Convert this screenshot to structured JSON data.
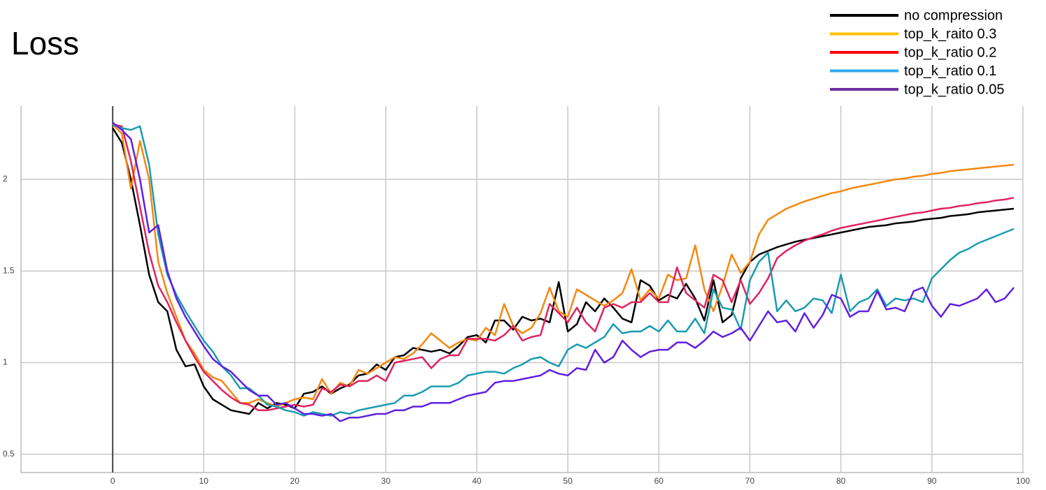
{
  "chart_data": {
    "type": "line",
    "title": "Loss",
    "x": [
      0,
      1,
      2,
      3,
      4,
      5,
      6,
      7,
      8,
      9,
      10,
      11,
      12,
      13,
      14,
      15,
      16,
      17,
      18,
      19,
      20,
      21,
      22,
      23,
      24,
      25,
      26,
      27,
      28,
      29,
      30,
      31,
      32,
      33,
      34,
      35,
      36,
      37,
      38,
      39,
      40,
      41,
      42,
      43,
      44,
      45,
      46,
      47,
      48,
      49,
      50,
      51,
      52,
      53,
      54,
      55,
      56,
      57,
      58,
      59,
      60,
      61,
      62,
      63,
      64,
      65,
      66,
      67,
      68,
      69,
      70,
      71,
      72,
      73,
      74,
      75,
      76,
      77,
      78,
      79,
      80,
      81,
      82,
      83,
      84,
      85,
      86,
      87,
      88,
      89,
      90,
      91,
      92,
      93,
      94,
      95,
      96,
      97,
      98,
      99
    ],
    "xlim": [
      -10,
      100
    ],
    "xticks": [
      0,
      10,
      20,
      30,
      40,
      50,
      60,
      70,
      80,
      90,
      100
    ],
    "ylim": [
      0.4,
      2.4
    ],
    "yticks": [
      0.5,
      1,
      1.5,
      2
    ],
    "grid": true,
    "series": [
      {
        "name": "no compression",
        "color": "#000000",
        "legend_color": "#000000",
        "values": [
          2.28,
          2.2,
          2.0,
          1.75,
          1.48,
          1.33,
          1.28,
          1.07,
          0.98,
          0.99,
          0.87,
          0.8,
          0.77,
          0.74,
          0.73,
          0.72,
          0.78,
          0.75,
          0.78,
          0.77,
          0.75,
          0.83,
          0.84,
          0.87,
          0.83,
          0.86,
          0.88,
          0.93,
          0.94,
          0.99,
          0.96,
          1.03,
          1.04,
          1.08,
          1.07,
          1.06,
          1.07,
          1.05,
          1.09,
          1.14,
          1.15,
          1.11,
          1.23,
          1.23,
          1.18,
          1.25,
          1.23,
          1.24,
          1.22,
          1.44,
          1.17,
          1.21,
          1.33,
          1.28,
          1.35,
          1.3,
          1.24,
          1.22,
          1.45,
          1.42,
          1.34,
          1.37,
          1.35,
          1.43,
          1.35,
          1.23,
          1.45,
          1.22,
          1.26,
          1.46,
          1.55,
          1.59,
          1.61,
          1.63,
          1.645,
          1.66,
          1.67,
          1.68,
          1.69,
          1.7,
          1.71,
          1.72,
          1.73,
          1.74,
          1.745,
          1.75,
          1.76,
          1.765,
          1.77,
          1.78,
          1.785,
          1.79,
          1.8,
          1.805,
          1.81,
          1.82,
          1.825,
          1.83,
          1.835,
          1.84
        ]
      },
      {
        "name": "top_k_raito 0.3",
        "color": "#f5880f",
        "legend_color": "#ffc000",
        "values": [
          2.3,
          2.25,
          1.95,
          2.21,
          2.0,
          1.55,
          1.38,
          1.25,
          1.12,
          1.05,
          0.96,
          0.92,
          0.9,
          0.84,
          0.78,
          0.78,
          0.8,
          0.78,
          0.76,
          0.78,
          0.8,
          0.81,
          0.8,
          0.91,
          0.83,
          0.89,
          0.87,
          0.96,
          0.94,
          0.97,
          1.0,
          1.03,
          1.02,
          1.05,
          1.1,
          1.16,
          1.12,
          1.08,
          1.11,
          1.13,
          1.12,
          1.19,
          1.15,
          1.32,
          1.2,
          1.16,
          1.19,
          1.27,
          1.41,
          1.28,
          1.25,
          1.4,
          1.37,
          1.34,
          1.31,
          1.34,
          1.38,
          1.51,
          1.34,
          1.4,
          1.35,
          1.48,
          1.45,
          1.46,
          1.64,
          1.4,
          1.28,
          1.42,
          1.59,
          1.49,
          1.55,
          1.7,
          1.78,
          1.81,
          1.84,
          1.86,
          1.88,
          1.895,
          1.91,
          1.925,
          1.935,
          1.95,
          1.96,
          1.97,
          1.98,
          1.99,
          2.0,
          2.005,
          2.015,
          2.02,
          2.03,
          2.035,
          2.045,
          2.05,
          2.055,
          2.06,
          2.065,
          2.07,
          2.075,
          2.08
        ]
      },
      {
        "name": "top_k_ratio 0.2",
        "color": "#e0245e",
        "legend_color": "#ff0000",
        "values": [
          2.3,
          2.29,
          2.1,
          1.85,
          1.6,
          1.42,
          1.33,
          1.22,
          1.12,
          1.03,
          0.95,
          0.9,
          0.85,
          0.81,
          0.78,
          0.77,
          0.74,
          0.74,
          0.75,
          0.76,
          0.77,
          0.76,
          0.77,
          0.86,
          0.84,
          0.88,
          0.87,
          0.9,
          0.9,
          0.93,
          0.9,
          1.0,
          1.01,
          1.02,
          1.03,
          0.97,
          1.02,
          1.04,
          1.04,
          1.13,
          1.13,
          1.13,
          1.12,
          1.15,
          1.2,
          1.12,
          1.14,
          1.15,
          1.32,
          1.27,
          1.22,
          1.3,
          1.22,
          1.17,
          1.3,
          1.32,
          1.3,
          1.33,
          1.33,
          1.38,
          1.33,
          1.33,
          1.52,
          1.38,
          1.34,
          1.3,
          1.48,
          1.45,
          1.33,
          1.45,
          1.32,
          1.38,
          1.46,
          1.57,
          1.61,
          1.64,
          1.665,
          1.685,
          1.7,
          1.72,
          1.735,
          1.745,
          1.755,
          1.765,
          1.775,
          1.785,
          1.795,
          1.805,
          1.815,
          1.82,
          1.83,
          1.84,
          1.845,
          1.855,
          1.86,
          1.87,
          1.875,
          1.885,
          1.89,
          1.9
        ]
      },
      {
        "name": "top_k_ratio 0.1",
        "color": "#1a9bb0",
        "legend_color": "#33aaee",
        "values": [
          2.3,
          2.28,
          2.27,
          2.29,
          2.08,
          1.7,
          1.48,
          1.37,
          1.28,
          1.2,
          1.12,
          1.06,
          0.98,
          0.93,
          0.86,
          0.86,
          0.82,
          0.77,
          0.76,
          0.74,
          0.73,
          0.71,
          0.73,
          0.72,
          0.71,
          0.73,
          0.72,
          0.74,
          0.75,
          0.76,
          0.77,
          0.78,
          0.82,
          0.82,
          0.84,
          0.87,
          0.87,
          0.87,
          0.89,
          0.93,
          0.94,
          0.95,
          0.95,
          0.94,
          0.97,
          0.99,
          1.02,
          1.03,
          1.0,
          0.98,
          1.07,
          1.1,
          1.08,
          1.11,
          1.14,
          1.21,
          1.16,
          1.17,
          1.17,
          1.2,
          1.17,
          1.23,
          1.17,
          1.17,
          1.24,
          1.16,
          1.4,
          1.3,
          1.29,
          1.18,
          1.45,
          1.55,
          1.6,
          1.28,
          1.34,
          1.28,
          1.3,
          1.35,
          1.34,
          1.27,
          1.48,
          1.28,
          1.33,
          1.35,
          1.4,
          1.31,
          1.35,
          1.34,
          1.35,
          1.33,
          1.46,
          1.51,
          1.56,
          1.6,
          1.62,
          1.65,
          1.67,
          1.69,
          1.71,
          1.73
        ]
      },
      {
        "name": "top_k_ratio 0.05",
        "color": "#6020e0",
        "legend_color": "#7030a0",
        "values": [
          2.31,
          2.27,
          2.22,
          2.0,
          1.71,
          1.75,
          1.5,
          1.35,
          1.25,
          1.17,
          1.09,
          1.02,
          0.98,
          0.95,
          0.9,
          0.85,
          0.82,
          0.82,
          0.77,
          0.78,
          0.75,
          0.72,
          0.72,
          0.71,
          0.72,
          0.68,
          0.7,
          0.7,
          0.71,
          0.72,
          0.72,
          0.74,
          0.74,
          0.76,
          0.76,
          0.78,
          0.78,
          0.78,
          0.8,
          0.82,
          0.83,
          0.84,
          0.89,
          0.9,
          0.9,
          0.91,
          0.92,
          0.93,
          0.96,
          0.94,
          0.93,
          0.97,
          0.96,
          1.07,
          1.0,
          1.03,
          1.12,
          1.07,
          1.03,
          1.06,
          1.07,
          1.07,
          1.11,
          1.11,
          1.08,
          1.12,
          1.17,
          1.14,
          1.16,
          1.19,
          1.12,
          1.2,
          1.28,
          1.22,
          1.23,
          1.17,
          1.27,
          1.19,
          1.26,
          1.37,
          1.35,
          1.25,
          1.28,
          1.28,
          1.39,
          1.29,
          1.3,
          1.28,
          1.39,
          1.41,
          1.31,
          1.25,
          1.32,
          1.31,
          1.33,
          1.35,
          1.4,
          1.33,
          1.35,
          1.41
        ]
      }
    ]
  }
}
